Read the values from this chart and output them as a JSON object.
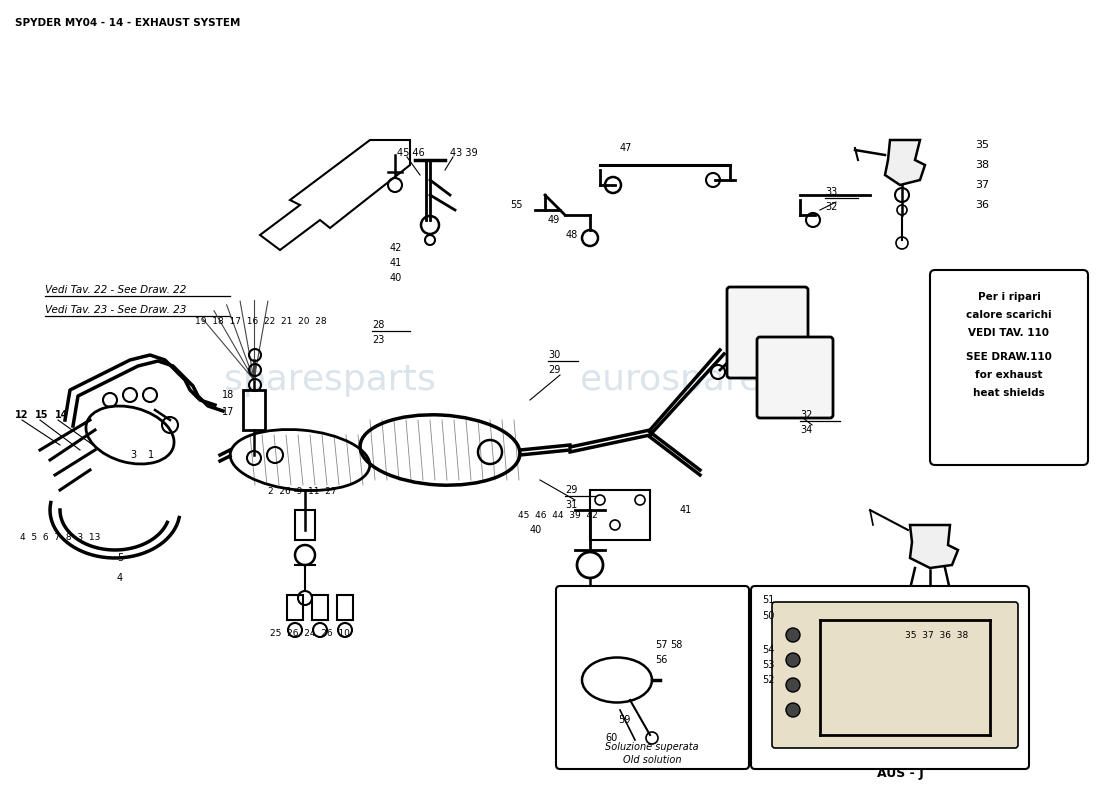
{
  "title": "SPYDER MY04 - 14 - EXHAUST SYSTEM",
  "title_fontsize": 7,
  "background_color": "#ffffff",
  "note_box_text_bold": [
    "Per i ripari",
    "calore scarichi",
    "VEDI TAV. 110"
  ],
  "note_box_text_normal": [
    "SEE DRAW.110",
    "for exhaust",
    "heat shields"
  ],
  "aus_j_label": "AUS - J",
  "old_solution_label_top": "Soluzione superata",
  "old_solution_label_bot": "Old solution",
  "see_draw_22": "Vedi Tav. 22 - See Draw. 22",
  "see_draw_23": "Vedi Tav. 23 - See Draw. 23"
}
